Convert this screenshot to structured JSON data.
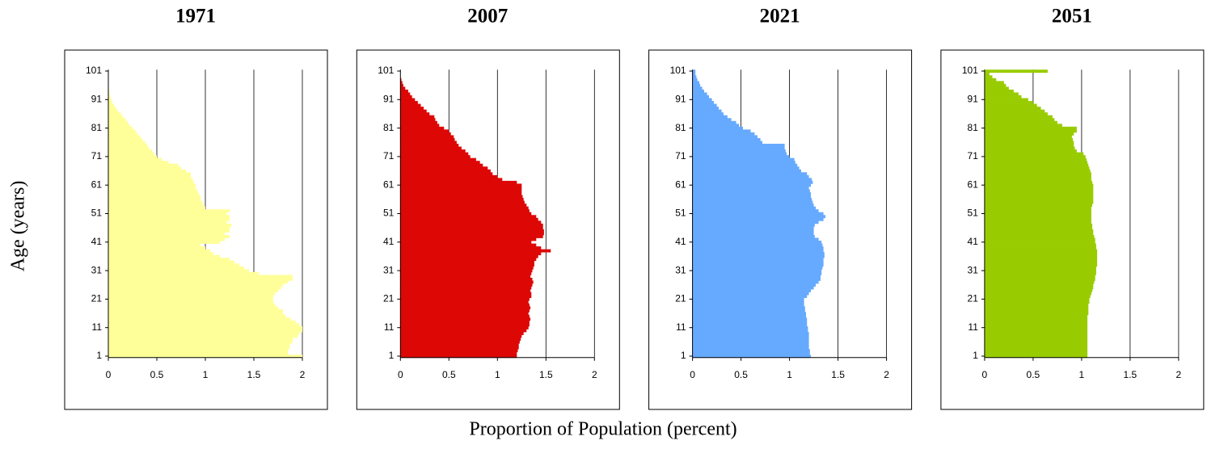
{
  "y_label": "Age (years)",
  "x_label": "Proportion of Population (percent)",
  "chart_data": [
    {
      "type": "bar",
      "orientation": "horizontal",
      "title": "1971",
      "color": "#ffff99",
      "grid": true,
      "xlim": [
        0,
        2
      ],
      "xticks": [
        0,
        0.5,
        1,
        1.5,
        2
      ],
      "categories": [
        1,
        null,
        null,
        null,
        null,
        null,
        null,
        null,
        null,
        null,
        11,
        null,
        null,
        null,
        null,
        null,
        null,
        null,
        null,
        null,
        21,
        null,
        null,
        null,
        null,
        null,
        null,
        null,
        null,
        null,
        31,
        null,
        null,
        null,
        null,
        null,
        null,
        null,
        null,
        null,
        41,
        null,
        null,
        null,
        null,
        null,
        null,
        null,
        null,
        null,
        51,
        null,
        null,
        null,
        null,
        null,
        null,
        null,
        null,
        null,
        61,
        null,
        null,
        null,
        null,
        null,
        null,
        null,
        null,
        null,
        71,
        null,
        null,
        null,
        null,
        null,
        null,
        null,
        null,
        null,
        81,
        null,
        null,
        null,
        null,
        null,
        null,
        null,
        null,
        null,
        91,
        null,
        null,
        null,
        null,
        null,
        null,
        null,
        null,
        null,
        101
      ],
      "values": [
        2.0,
        1.85,
        1.85,
        1.87,
        1.87,
        1.9,
        1.9,
        1.95,
        1.97,
        2.0,
        2.0,
        1.97,
        1.93,
        1.88,
        1.83,
        1.8,
        1.8,
        1.75,
        1.72,
        1.7,
        1.7,
        1.7,
        1.72,
        1.75,
        1.78,
        1.8,
        1.85,
        1.9,
        1.9,
        1.55,
        1.45,
        1.4,
        1.35,
        1.3,
        1.25,
        1.15,
        1.08,
        1.05,
        1.0,
        0.95,
        1.15,
        1.2,
        1.25,
        1.2,
        1.25,
        1.25,
        1.27,
        1.22,
        1.25,
        1.25,
        1.22,
        1.25,
        1.0,
        0.98,
        0.97,
        0.95,
        0.95,
        0.93,
        0.92,
        0.9,
        0.9,
        0.88,
        0.87,
        0.85,
        0.85,
        0.8,
        0.75,
        0.72,
        0.62,
        0.55,
        0.5,
        0.47,
        0.45,
        0.42,
        0.4,
        0.38,
        0.35,
        0.33,
        0.3,
        0.28,
        0.25,
        0.22,
        0.2,
        0.18,
        0.15,
        0.13,
        0.1,
        0.08,
        0.06,
        0.04,
        0.03,
        0.02,
        0.01,
        0.01,
        0,
        0,
        0,
        0,
        0,
        0,
        0
      ]
    },
    {
      "type": "bar",
      "orientation": "horizontal",
      "title": "2007",
      "color": "#dd0806",
      "grid": true,
      "xlim": [
        0,
        2
      ],
      "xticks": [
        0,
        0.5,
        1,
        1.5,
        2
      ],
      "categories": [
        1,
        null,
        null,
        null,
        null,
        null,
        null,
        null,
        null,
        null,
        11,
        null,
        null,
        null,
        null,
        null,
        null,
        null,
        null,
        null,
        21,
        null,
        null,
        null,
        null,
        null,
        null,
        null,
        null,
        null,
        31,
        null,
        null,
        null,
        null,
        null,
        null,
        null,
        null,
        null,
        41,
        null,
        null,
        null,
        null,
        null,
        null,
        null,
        null,
        null,
        51,
        null,
        null,
        null,
        null,
        null,
        null,
        null,
        null,
        null,
        61,
        null,
        null,
        null,
        null,
        null,
        null,
        null,
        null,
        null,
        71,
        null,
        null,
        null,
        null,
        null,
        null,
        null,
        null,
        null,
        81,
        null,
        null,
        null,
        null,
        null,
        null,
        null,
        null,
        null,
        91,
        null,
        null,
        null,
        null,
        null,
        null,
        null,
        null,
        null,
        101
      ],
      "values": [
        1.2,
        1.2,
        1.21,
        1.22,
        1.22,
        1.23,
        1.24,
        1.25,
        1.27,
        1.3,
        1.32,
        1.33,
        1.33,
        1.34,
        1.33,
        1.32,
        1.33,
        1.34,
        1.33,
        1.32,
        1.33,
        1.35,
        1.35,
        1.34,
        1.35,
        1.36,
        1.37,
        1.36,
        1.34,
        1.35,
        1.36,
        1.37,
        1.38,
        1.38,
        1.4,
        1.42,
        1.45,
        1.55,
        1.45,
        1.4,
        1.35,
        1.4,
        1.47,
        1.48,
        1.48,
        1.47,
        1.47,
        1.45,
        1.42,
        1.4,
        1.35,
        1.33,
        1.32,
        1.3,
        1.28,
        1.27,
        1.26,
        1.25,
        1.25,
        1.25,
        1.25,
        1.2,
        1.05,
        1.0,
        0.95,
        0.93,
        0.9,
        0.85,
        0.82,
        0.78,
        0.72,
        0.7,
        0.67,
        0.63,
        0.6,
        0.58,
        0.56,
        0.55,
        0.52,
        0.5,
        0.45,
        0.4,
        0.38,
        0.36,
        0.35,
        0.3,
        0.27,
        0.24,
        0.21,
        0.18,
        0.15,
        0.12,
        0.1,
        0.08,
        0.05,
        0.03,
        0.02,
        0.01,
        0,
        0,
        0
      ]
    },
    {
      "type": "bar",
      "orientation": "horizontal",
      "title": "2021",
      "color": "#66aaff",
      "grid": true,
      "xlim": [
        0,
        2
      ],
      "xticks": [
        0,
        0.5,
        1,
        1.5,
        2
      ],
      "categories": [
        1,
        null,
        null,
        null,
        null,
        null,
        null,
        null,
        null,
        null,
        11,
        null,
        null,
        null,
        null,
        null,
        null,
        null,
        null,
        null,
        21,
        null,
        null,
        null,
        null,
        null,
        null,
        null,
        null,
        null,
        31,
        null,
        null,
        null,
        null,
        null,
        null,
        null,
        null,
        null,
        41,
        null,
        null,
        null,
        null,
        null,
        null,
        null,
        null,
        null,
        51,
        null,
        null,
        null,
        null,
        null,
        null,
        null,
        null,
        null,
        61,
        null,
        null,
        null,
        null,
        null,
        null,
        null,
        null,
        null,
        71,
        null,
        null,
        null,
        null,
        null,
        null,
        null,
        null,
        null,
        81,
        null,
        null,
        null,
        null,
        null,
        null,
        null,
        null,
        null,
        91,
        null,
        null,
        null,
        null,
        null,
        null,
        null,
        null,
        null,
        101
      ],
      "values": [
        1.22,
        1.21,
        1.21,
        1.2,
        1.2,
        1.2,
        1.2,
        1.2,
        1.2,
        1.19,
        1.19,
        1.18,
        1.18,
        1.18,
        1.17,
        1.17,
        1.16,
        1.16,
        1.15,
        1.15,
        1.15,
        1.18,
        1.2,
        1.22,
        1.25,
        1.27,
        1.3,
        1.32,
        1.32,
        1.33,
        1.33,
        1.34,
        1.35,
        1.35,
        1.35,
        1.36,
        1.36,
        1.35,
        1.35,
        1.34,
        1.33,
        1.3,
        1.26,
        1.25,
        1.25,
        1.25,
        1.26,
        1.3,
        1.35,
        1.37,
        1.35,
        1.3,
        1.27,
        1.25,
        1.24,
        1.23,
        1.22,
        1.22,
        1.21,
        1.2,
        1.22,
        1.24,
        1.23,
        1.2,
        1.18,
        1.12,
        1.1,
        1.08,
        1.06,
        1.05,
        1.0,
        0.97,
        0.96,
        0.95,
        0.95,
        0.72,
        0.7,
        0.67,
        0.64,
        0.6,
        0.52,
        0.48,
        0.45,
        0.4,
        0.36,
        0.32,
        0.3,
        0.27,
        0.25,
        0.22,
        0.2,
        0.17,
        0.15,
        0.12,
        0.1,
        0.08,
        0.07,
        0.05,
        0.04,
        0.03,
        0.03
      ]
    },
    {
      "type": "bar",
      "orientation": "horizontal",
      "title": "2051",
      "color": "#99cc00",
      "grid": true,
      "xlim": [
        0,
        2
      ],
      "xticks": [
        0,
        0.5,
        1,
        1.5,
        2
      ],
      "categories": [
        1,
        null,
        null,
        null,
        null,
        null,
        null,
        null,
        null,
        null,
        11,
        null,
        null,
        null,
        null,
        null,
        null,
        null,
        null,
        null,
        21,
        null,
        null,
        null,
        null,
        null,
        null,
        null,
        null,
        null,
        31,
        null,
        null,
        null,
        null,
        null,
        null,
        null,
        null,
        null,
        41,
        null,
        null,
        null,
        null,
        null,
        null,
        null,
        null,
        null,
        51,
        null,
        null,
        null,
        null,
        null,
        null,
        null,
        null,
        null,
        61,
        null,
        null,
        null,
        null,
        null,
        null,
        null,
        null,
        null,
        71,
        null,
        null,
        null,
        null,
        null,
        null,
        null,
        null,
        null,
        81,
        null,
        null,
        null,
        null,
        null,
        null,
        null,
        null,
        null,
        91,
        null,
        null,
        null,
        null,
        null,
        null,
        null,
        null,
        null,
        101
      ],
      "values": [
        1.06,
        1.06,
        1.06,
        1.06,
        1.06,
        1.06,
        1.06,
        1.06,
        1.06,
        1.06,
        1.06,
        1.06,
        1.06,
        1.06,
        1.06,
        1.07,
        1.07,
        1.07,
        1.07,
        1.08,
        1.08,
        1.09,
        1.1,
        1.11,
        1.12,
        1.12,
        1.13,
        1.14,
        1.14,
        1.15,
        1.15,
        1.15,
        1.16,
        1.16,
        1.16,
        1.16,
        1.16,
        1.16,
        1.15,
        1.15,
        1.14,
        1.14,
        1.13,
        1.12,
        1.12,
        1.11,
        1.11,
        1.1,
        1.1,
        1.1,
        1.1,
        1.1,
        1.1,
        1.11,
        1.12,
        1.12,
        1.12,
        1.12,
        1.12,
        1.12,
        1.12,
        1.11,
        1.1,
        1.1,
        1.1,
        1.09,
        1.08,
        1.07,
        1.06,
        1.05,
        1.04,
        1.02,
        0.95,
        0.93,
        0.92,
        0.92,
        0.91,
        0.9,
        0.92,
        0.95,
        0.95,
        0.8,
        0.75,
        0.72,
        0.7,
        0.65,
        0.62,
        0.58,
        0.54,
        0.5,
        0.45,
        0.38,
        0.35,
        0.3,
        0.25,
        0.22,
        0.2,
        0.12,
        0.08,
        0.05,
        0.65
      ]
    }
  ]
}
